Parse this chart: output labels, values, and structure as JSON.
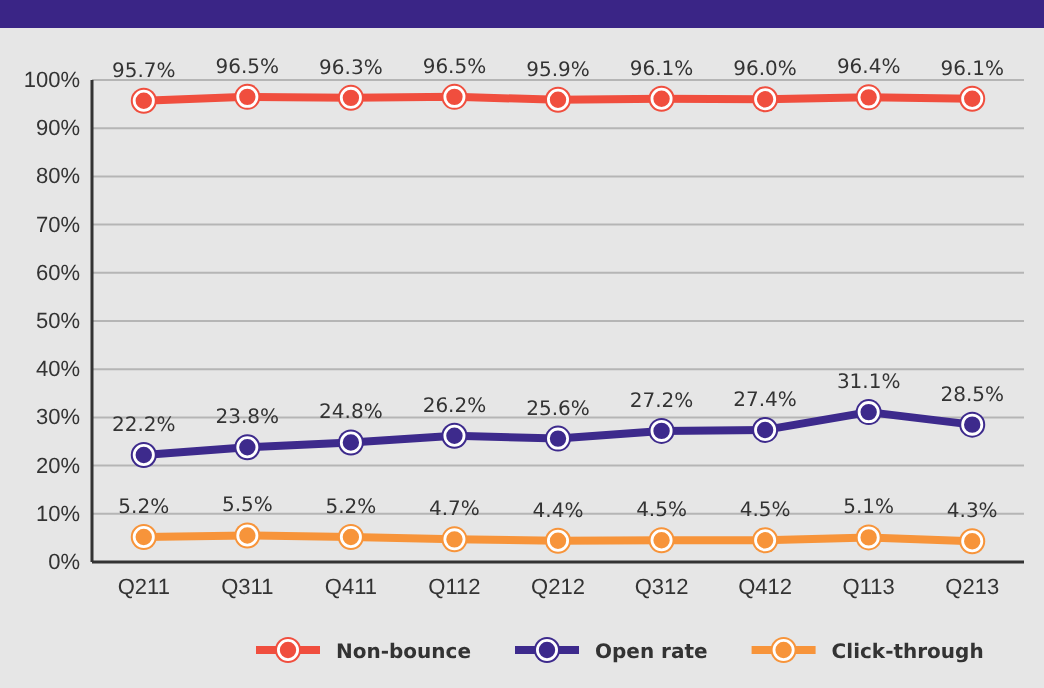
{
  "chart_data": {
    "type": "line",
    "categories": [
      "Q211",
      "Q311",
      "Q411",
      "Q112",
      "Q212",
      "Q312",
      "Q412",
      "Q113",
      "Q213"
    ],
    "series": [
      {
        "name": "Non-bounce",
        "color": "#f04e3e",
        "values": [
          95.7,
          96.5,
          96.3,
          96.5,
          95.9,
          96.1,
          96.0,
          96.4,
          96.1
        ],
        "value_labels": [
          "95.7%",
          "96.5%",
          "96.3%",
          "96.5%",
          "95.9%",
          "96.1%",
          "96.0%",
          "96.4%",
          "96.1%"
        ]
      },
      {
        "name": "Open rate",
        "color": "#3d2a8c",
        "values": [
          22.2,
          23.8,
          24.8,
          26.2,
          25.6,
          27.2,
          27.4,
          31.1,
          28.5
        ],
        "value_labels": [
          "22.2%",
          "23.8%",
          "24.8%",
          "26.2%",
          "25.6%",
          "27.2%",
          "27.4%",
          "31.1%",
          "28.5%"
        ]
      },
      {
        "name": "Click-through",
        "color": "#f7943a",
        "values": [
          5.2,
          5.5,
          5.2,
          4.7,
          4.4,
          4.5,
          4.5,
          5.1,
          4.3
        ],
        "value_labels": [
          "5.2%",
          "5.5%",
          "5.2%",
          "4.7%",
          "4.4%",
          "4.5%",
          "4.5%",
          "5.1%",
          "4.3%"
        ]
      }
    ],
    "ylim": [
      0,
      100
    ],
    "yticks": [
      {
        "value": 0,
        "label": "0%"
      },
      {
        "value": 10,
        "label": "10%"
      },
      {
        "value": 20,
        "label": "20%"
      },
      {
        "value": 30,
        "label": "30%"
      },
      {
        "value": 40,
        "label": "40%"
      },
      {
        "value": 50,
        "label": "50%"
      },
      {
        "value": 60,
        "label": "60%"
      },
      {
        "value": 70,
        "label": "70%"
      },
      {
        "value": 80,
        "label": "80%"
      },
      {
        "value": 90,
        "label": "90%"
      },
      {
        "value": 100,
        "label": "100%"
      }
    ],
    "grid": "y",
    "legend": "bottom",
    "marker": "circle",
    "line_style": "solid"
  }
}
